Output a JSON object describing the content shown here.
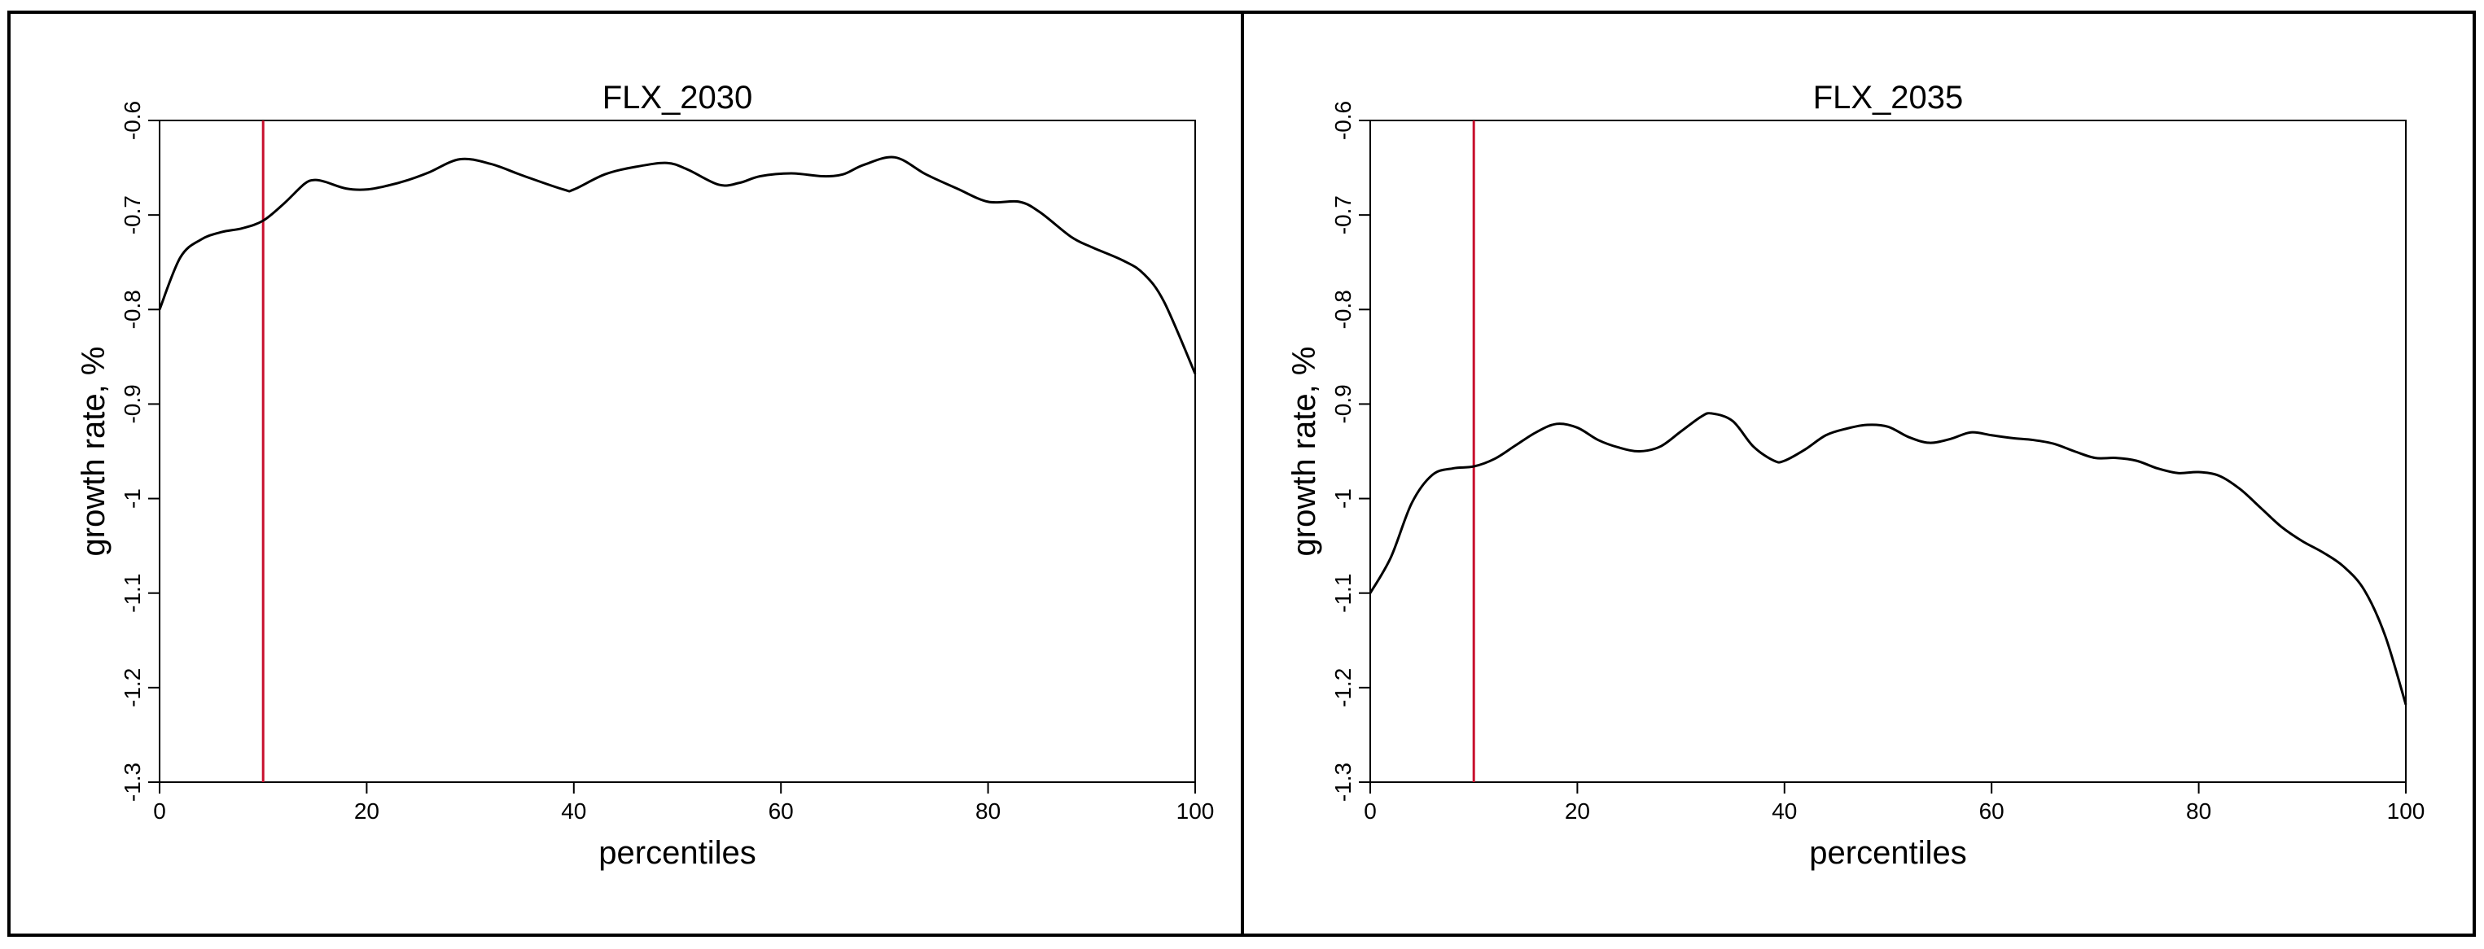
{
  "chart_data": [
    {
      "type": "line",
      "title": "FLX_2030",
      "xlabel": "percentiles",
      "ylabel": "growth rate, %",
      "xlim": [
        0,
        100
      ],
      "ylim": [
        -1.3,
        -0.6
      ],
      "x_ticks": [
        0,
        20,
        40,
        60,
        80,
        100
      ],
      "y_ticks": [
        -1.3,
        -1.2,
        -1.1,
        -1,
        -0.9,
        -0.8,
        -0.7,
        -0.6
      ],
      "x_tick_labels": [
        "0",
        "20",
        "40",
        "60",
        "80",
        "100"
      ],
      "y_tick_labels": [
        "-1.3",
        "-1.2",
        "-1.1",
        "-1",
        "-0.9",
        "-0.8",
        "-0.7",
        "-0.6"
      ],
      "vline": {
        "x": 10,
        "color": "#c8102e"
      },
      "line_color": "#000000",
      "grid": false,
      "series": [
        {
          "x": [
            0,
            2,
            4,
            6,
            8,
            10,
            12,
            14,
            15,
            16,
            18,
            20,
            22,
            24,
            26,
            29,
            32,
            35,
            39,
            40,
            43,
            46,
            49,
            51,
            54,
            56,
            58,
            61,
            64,
            66,
            68,
            71,
            74,
            77,
            80,
            83,
            85,
            88,
            90,
            93,
            95,
            97,
            100
          ],
          "y": [
            -0.8,
            -0.745,
            -0.726,
            -0.718,
            -0.714,
            -0.706,
            -0.688,
            -0.667,
            -0.663,
            -0.665,
            -0.672,
            -0.673,
            -0.669,
            -0.663,
            -0.655,
            -0.641,
            -0.646,
            -0.658,
            -0.673,
            -0.673,
            -0.657,
            -0.649,
            -0.645,
            -0.652,
            -0.668,
            -0.666,
            -0.659,
            -0.656,
            -0.659,
            -0.657,
            -0.647,
            -0.639,
            -0.657,
            -0.672,
            -0.686,
            -0.686,
            -0.697,
            -0.723,
            -0.734,
            -0.748,
            -0.762,
            -0.792,
            -0.868
          ]
        }
      ]
    },
    {
      "type": "line",
      "title": "FLX_2035",
      "xlabel": "percentiles",
      "ylabel": "growth rate, %",
      "xlim": [
        0,
        100
      ],
      "ylim": [
        -1.3,
        -0.6
      ],
      "x_ticks": [
        0,
        20,
        40,
        60,
        80,
        100
      ],
      "y_ticks": [
        -1.3,
        -1.2,
        -1.1,
        -1,
        -0.9,
        -0.8,
        -0.7,
        -0.6
      ],
      "x_tick_labels": [
        "0",
        "20",
        "40",
        "60",
        "80",
        "100"
      ],
      "y_tick_labels": [
        "-1.3",
        "-1.2",
        "-1.1",
        "-1",
        "-0.9",
        "-0.8",
        "-0.7",
        "-0.6"
      ],
      "vline": {
        "x": 10,
        "color": "#c8102e"
      },
      "line_color": "#000000",
      "grid": false,
      "series": [
        {
          "x": [
            0,
            2,
            4,
            6,
            8,
            10,
            12,
            14,
            16,
            18,
            20,
            22,
            24,
            26,
            28,
            30,
            32,
            33,
            35,
            37,
            39,
            40,
            42,
            44,
            46,
            48,
            50,
            52,
            54,
            56,
            58,
            60,
            62,
            64,
            66,
            68,
            70,
            72,
            74,
            76,
            78,
            80,
            82,
            84,
            86,
            88,
            90,
            92,
            94,
            96,
            98,
            100
          ],
          "y": [
            -1.1,
            -1.062,
            -1.005,
            -0.975,
            -0.968,
            -0.966,
            -0.958,
            -0.944,
            -0.93,
            -0.921,
            -0.925,
            -0.938,
            -0.946,
            -0.95,
            -0.945,
            -0.929,
            -0.913,
            -0.91,
            -0.918,
            -0.945,
            -0.96,
            -0.96,
            -0.948,
            -0.933,
            -0.926,
            -0.922,
            -0.924,
            -0.935,
            -0.941,
            -0.937,
            -0.93,
            -0.933,
            -0.936,
            -0.938,
            -0.942,
            -0.95,
            -0.957,
            -0.957,
            -0.96,
            -0.968,
            -0.973,
            -0.972,
            -0.976,
            -0.99,
            -1.01,
            -1.03,
            -1.045,
            -1.057,
            -1.072,
            -1.097,
            -1.145,
            -1.218
          ]
        }
      ]
    }
  ]
}
